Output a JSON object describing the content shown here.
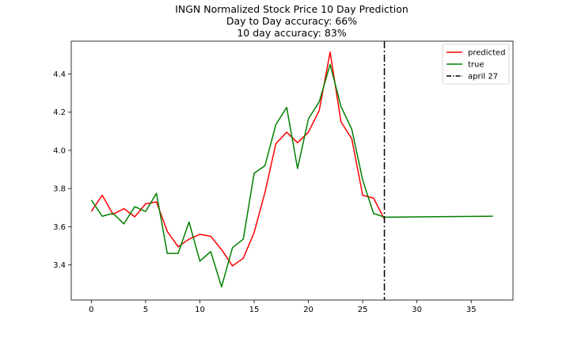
{
  "chart_data": {
    "type": "line",
    "title_lines": [
      "INGN Normalized Stock Price 10 Day Prediction",
      "Day to Day accuracy: 66%",
      "10 day accuracy: 83%"
    ],
    "xlim": [
      -1.85,
      38.85
    ],
    "ylim": [
      3.216,
      4.572
    ],
    "xticks": [
      0,
      5,
      10,
      15,
      20,
      25,
      30,
      35
    ],
    "yticks": [
      3.4,
      3.6,
      3.8,
      4.0,
      4.2,
      4.4
    ],
    "ytick_labels": [
      "3.4",
      "3.6",
      "3.8",
      "4.0",
      "4.2",
      "4.4"
    ],
    "series": [
      {
        "name": "predicted",
        "color": "#ff0000",
        "x": [
          0,
          1,
          2,
          3,
          4,
          5,
          6,
          7,
          8,
          9,
          10,
          11,
          12,
          13,
          14,
          15,
          16,
          17,
          18,
          19,
          20,
          21,
          22,
          23,
          24,
          25,
          26,
          27
        ],
        "y": [
          3.68,
          3.765,
          3.665,
          3.695,
          3.652,
          3.72,
          3.73,
          3.575,
          3.495,
          3.535,
          3.56,
          3.55,
          3.48,
          3.395,
          3.435,
          3.57,
          3.78,
          4.035,
          4.095,
          4.04,
          4.095,
          4.21,
          4.515,
          4.15,
          4.06,
          3.765,
          3.75,
          3.64
        ]
      },
      {
        "name": "true",
        "color": "#008000",
        "x": [
          0,
          1,
          2,
          3,
          4,
          5,
          6,
          7,
          8,
          9,
          10,
          11,
          12,
          13,
          14,
          15,
          16,
          17,
          18,
          19,
          20,
          21,
          22,
          23,
          24,
          25,
          26,
          27,
          37
        ],
        "y": [
          3.74,
          3.655,
          3.67,
          3.615,
          3.705,
          3.68,
          3.775,
          3.46,
          3.46,
          3.625,
          3.42,
          3.47,
          3.285,
          3.49,
          3.535,
          3.88,
          3.92,
          4.135,
          4.225,
          3.905,
          4.165,
          4.255,
          4.45,
          4.23,
          4.11,
          3.845,
          3.67,
          3.65,
          3.655
        ]
      }
    ],
    "vline": {
      "name": "april 27",
      "x": 27,
      "color": "#000000",
      "style": "dashdot"
    },
    "legend_position": "top-right"
  }
}
